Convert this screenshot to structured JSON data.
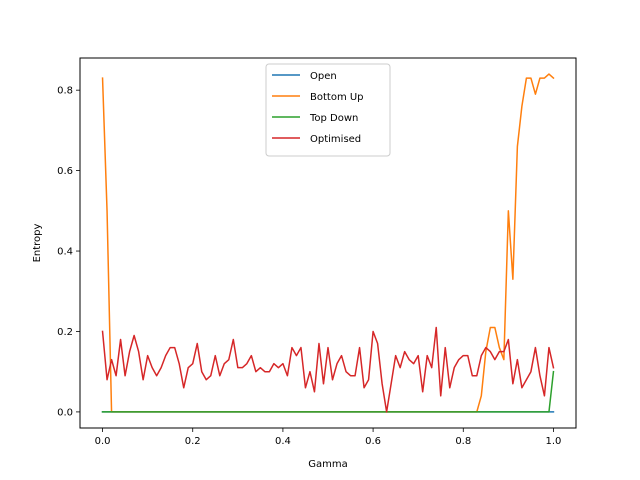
{
  "chart_data": {
    "type": "line",
    "xlabel": "Gamma",
    "ylabel": "Entropy",
    "xlim": [
      -0.05,
      1.05
    ],
    "ylim": [
      -0.04,
      0.88
    ],
    "xticks": [
      0.0,
      0.2,
      0.4,
      0.6,
      0.8,
      1.0
    ],
    "xtick_labels": [
      "0.0",
      "0.2",
      "0.4",
      "0.6",
      "0.8",
      "1.0"
    ],
    "yticks": [
      0.0,
      0.2,
      0.4,
      0.6,
      0.8
    ],
    "ytick_labels": [
      "0.0",
      "0.2",
      "0.4",
      "0.6",
      "0.8"
    ],
    "legend": "upper-center",
    "grid": false,
    "series": [
      {
        "name": "Open",
        "color": "#1f77b4",
        "x": [
          0.0,
          0.83,
          0.84,
          0.85,
          0.86,
          0.87,
          0.88,
          0.89,
          0.9,
          0.91,
          0.92,
          0.93,
          0.94,
          0.95,
          0.96,
          0.97,
          0.98,
          0.99,
          1.0
        ],
        "y": [
          0.0,
          0.0,
          0.0,
          0.0,
          0.0,
          0.0,
          0.0,
          0.0,
          0.0,
          0.0,
          0.0,
          0.0,
          0.0,
          0.0,
          0.0,
          0.0,
          0.0,
          0.0,
          0.0
        ]
      },
      {
        "name": "Bottom Up",
        "color": "#ff7f0e",
        "x": [
          0.0,
          0.01,
          0.02,
          0.83,
          0.84,
          0.85,
          0.86,
          0.87,
          0.88,
          0.89,
          0.9,
          0.91,
          0.92,
          0.93,
          0.94,
          0.95,
          0.96,
          0.97,
          0.98,
          0.99,
          1.0
        ],
        "y": [
          0.83,
          0.5,
          0.0,
          0.0,
          0.04,
          0.15,
          0.21,
          0.21,
          0.16,
          0.13,
          0.5,
          0.33,
          0.66,
          0.76,
          0.83,
          0.83,
          0.79,
          0.83,
          0.83,
          0.84,
          0.83
        ]
      },
      {
        "name": "Top Down",
        "color": "#2ca02c",
        "x": [
          0.0,
          0.02,
          0.99,
          1.0
        ],
        "y": [
          0.0,
          0.0,
          0.0,
          0.1
        ]
      },
      {
        "name": "Optimised",
        "color": "#d62728",
        "x": [
          0.0,
          0.01,
          0.02,
          0.03,
          0.04,
          0.05,
          0.06,
          0.07,
          0.08,
          0.09,
          0.1,
          0.11,
          0.12,
          0.13,
          0.14,
          0.15,
          0.16,
          0.17,
          0.18,
          0.19,
          0.2,
          0.21,
          0.22,
          0.23,
          0.24,
          0.25,
          0.26,
          0.27,
          0.28,
          0.29,
          0.3,
          0.31,
          0.32,
          0.33,
          0.34,
          0.35,
          0.36,
          0.37,
          0.38,
          0.39,
          0.4,
          0.41,
          0.42,
          0.43,
          0.44,
          0.45,
          0.46,
          0.47,
          0.48,
          0.49,
          0.5,
          0.51,
          0.52,
          0.53,
          0.54,
          0.55,
          0.56,
          0.57,
          0.58,
          0.59,
          0.6,
          0.61,
          0.62,
          0.63,
          0.64,
          0.65,
          0.66,
          0.67,
          0.68,
          0.69,
          0.7,
          0.71,
          0.72,
          0.73,
          0.74,
          0.75,
          0.76,
          0.77,
          0.78,
          0.79,
          0.8,
          0.81,
          0.82,
          0.83,
          0.84,
          0.85,
          0.86,
          0.87,
          0.88,
          0.89,
          0.9,
          0.91,
          0.92,
          0.93,
          0.94,
          0.95,
          0.96,
          0.97,
          0.98,
          0.99,
          1.0
        ],
        "y": [
          0.2,
          0.08,
          0.13,
          0.09,
          0.18,
          0.09,
          0.15,
          0.19,
          0.15,
          0.08,
          0.14,
          0.11,
          0.09,
          0.11,
          0.14,
          0.16,
          0.16,
          0.12,
          0.06,
          0.11,
          0.12,
          0.17,
          0.1,
          0.08,
          0.09,
          0.14,
          0.09,
          0.12,
          0.13,
          0.18,
          0.11,
          0.11,
          0.12,
          0.14,
          0.1,
          0.11,
          0.1,
          0.1,
          0.12,
          0.11,
          0.12,
          0.09,
          0.16,
          0.14,
          0.16,
          0.06,
          0.1,
          0.05,
          0.17,
          0.07,
          0.16,
          0.08,
          0.12,
          0.14,
          0.1,
          0.09,
          0.09,
          0.16,
          0.06,
          0.08,
          0.2,
          0.17,
          0.07,
          0.0,
          0.07,
          0.14,
          0.11,
          0.15,
          0.13,
          0.12,
          0.14,
          0.05,
          0.14,
          0.11,
          0.21,
          0.04,
          0.16,
          0.06,
          0.11,
          0.13,
          0.14,
          0.14,
          0.09,
          0.09,
          0.14,
          0.16,
          0.15,
          0.13,
          0.15,
          0.15,
          0.18,
          0.07,
          0.13,
          0.06,
          0.08,
          0.1,
          0.16,
          0.09,
          0.04,
          0.16,
          0.11
        ]
      }
    ]
  }
}
